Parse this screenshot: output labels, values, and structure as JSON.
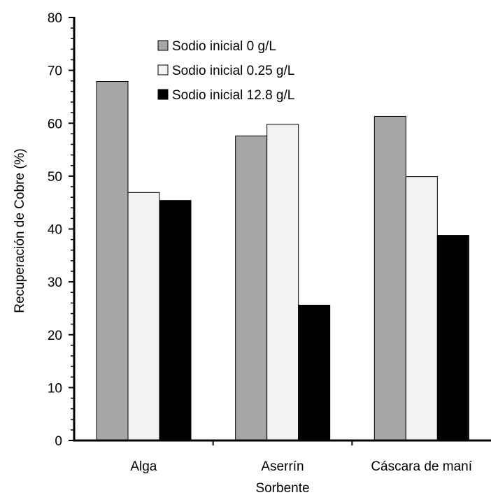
{
  "chart_data": {
    "type": "bar",
    "title": "",
    "xlabel": "Sorbente",
    "ylabel": "Recuperación de Cobre (%)",
    "ylim": [
      0,
      80
    ],
    "yticks": [
      0,
      10,
      20,
      30,
      40,
      50,
      60,
      70,
      80
    ],
    "categories": [
      "Alga",
      "Aserrín",
      "Cáscara de maní"
    ],
    "series": [
      {
        "name": "Sodio inicial 0 g/L",
        "color": "#a6a6a6",
        "values": [
          67.9,
          57.6,
          61.3
        ]
      },
      {
        "name": "Sodio inicial 0.25 g/L",
        "color": "#f2f2f2",
        "values": [
          46.9,
          59.8,
          49.9
        ]
      },
      {
        "name": "Sodio inicial 12.8 g/L",
        "color": "#000000",
        "values": [
          45.4,
          25.6,
          38.8
        ]
      }
    ],
    "grid": false,
    "legend_position": "top-center"
  }
}
